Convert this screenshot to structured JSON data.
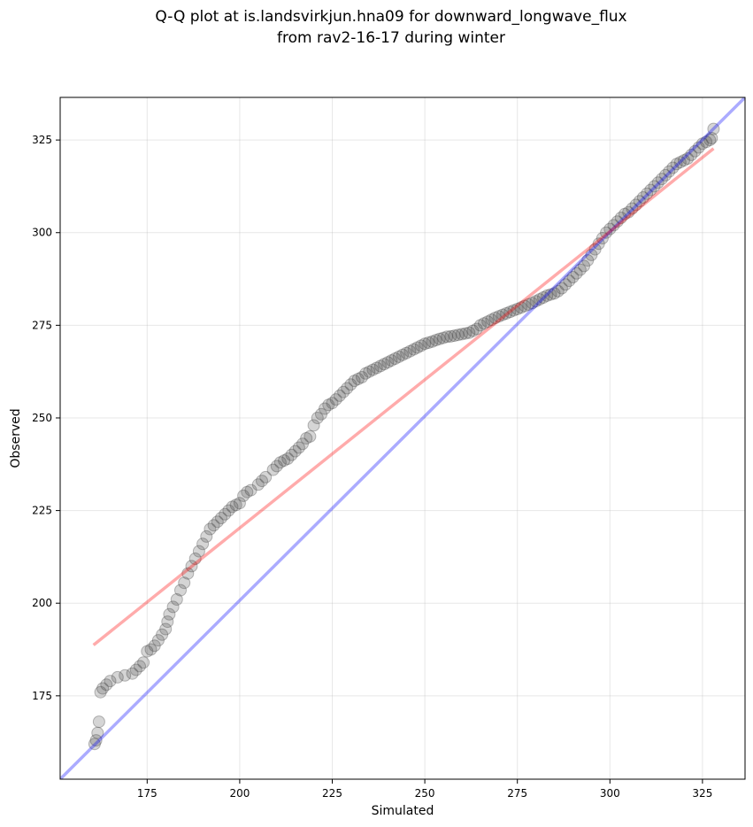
{
  "chart_data": {
    "type": "scatter",
    "title": "Q-Q plot at is.landsvirkjun.hna09 for downward_longwave_flux",
    "subtitle": "from rav2-16-17 during winter",
    "xlabel": "Simulated",
    "ylabel": "Observed",
    "xlim": [
      151.5,
      336.5
    ],
    "ylim": [
      152.5,
      336.5
    ],
    "xticks": [
      175,
      200,
      225,
      250,
      275,
      300,
      325
    ],
    "yticks": [
      175,
      200,
      225,
      250,
      275,
      300,
      325
    ],
    "grid": true,
    "series": [
      {
        "name": "quantiles",
        "color": "#404040",
        "points": [
          [
            160.8,
            162.0
          ],
          [
            161.2,
            163.0
          ],
          [
            161.6,
            165.0
          ],
          [
            162.0,
            168.0
          ],
          [
            162.4,
            176.0
          ],
          [
            163.0,
            177.0
          ],
          [
            164.0,
            178.0
          ],
          [
            165.0,
            179.0
          ],
          [
            167.0,
            180.0
          ],
          [
            169.0,
            180.5
          ],
          [
            171.0,
            181.0
          ],
          [
            172.0,
            182.0
          ],
          [
            173.0,
            183.0
          ],
          [
            174.0,
            184.0
          ],
          [
            175.0,
            187.0
          ],
          [
            176.0,
            187.5
          ],
          [
            177.0,
            188.5
          ],
          [
            178.0,
            190.0
          ],
          [
            179.0,
            191.5
          ],
          [
            180.0,
            193.0
          ],
          [
            180.5,
            195.0
          ],
          [
            181.0,
            197.0
          ],
          [
            182.0,
            199.0
          ],
          [
            183.0,
            201.0
          ],
          [
            184.0,
            203.5
          ],
          [
            185.0,
            205.5
          ],
          [
            186.0,
            208.0
          ],
          [
            187.0,
            210.0
          ],
          [
            188.0,
            212.0
          ],
          [
            189.0,
            214.0
          ],
          [
            190.0,
            216.0
          ],
          [
            191.0,
            218.0
          ],
          [
            192.0,
            220.0
          ],
          [
            193.0,
            221.0
          ],
          [
            194.0,
            222.0
          ],
          [
            195.0,
            223.0
          ],
          [
            196.0,
            224.0
          ],
          [
            197.0,
            225.0
          ],
          [
            198.0,
            226.0
          ],
          [
            199.0,
            226.5
          ],
          [
            200.0,
            227.0
          ],
          [
            201.0,
            229.0
          ],
          [
            202.0,
            230.0
          ],
          [
            203.0,
            230.5
          ],
          [
            205.0,
            232.0
          ],
          [
            206.0,
            233.0
          ],
          [
            207.0,
            234.0
          ],
          [
            209.0,
            236.0
          ],
          [
            210.0,
            237.0
          ],
          [
            211.0,
            238.0
          ],
          [
            212.0,
            238.5
          ],
          [
            213.0,
            239.0
          ],
          [
            214.0,
            240.0
          ],
          [
            215.0,
            241.0
          ],
          [
            216.0,
            242.0
          ],
          [
            217.0,
            243.0
          ],
          [
            218.0,
            244.5
          ],
          [
            219.0,
            245.0
          ],
          [
            220.0,
            248.0
          ],
          [
            221.0,
            250.0
          ],
          [
            222.0,
            251.0
          ],
          [
            223.0,
            252.5
          ],
          [
            224.0,
            253.5
          ],
          [
            225.0,
            254.0
          ],
          [
            226.0,
            255.0
          ],
          [
            227.0,
            256.0
          ],
          [
            228.0,
            257.0
          ],
          [
            229.0,
            258.0
          ],
          [
            230.0,
            259.0
          ],
          [
            231.0,
            260.0
          ],
          [
            232.0,
            260.5
          ],
          [
            233.0,
            261.0
          ],
          [
            234.0,
            262.0
          ],
          [
            235.0,
            262.5
          ],
          [
            236.0,
            263.0
          ],
          [
            237.0,
            263.5
          ],
          [
            238.0,
            264.0
          ],
          [
            239.0,
            264.5
          ],
          [
            240.0,
            265.0
          ],
          [
            241.0,
            265.5
          ],
          [
            242.0,
            266.0
          ],
          [
            243.0,
            266.5
          ],
          [
            244.0,
            267.0
          ],
          [
            245.0,
            267.5
          ],
          [
            246.0,
            268.0
          ],
          [
            247.0,
            268.5
          ],
          [
            248.0,
            269.0
          ],
          [
            249.0,
            269.5
          ],
          [
            250.0,
            270.0
          ],
          [
            251.0,
            270.3
          ],
          [
            252.0,
            270.6
          ],
          [
            253.0,
            271.0
          ],
          [
            254.0,
            271.3
          ],
          [
            255.0,
            271.6
          ],
          [
            256.0,
            271.9
          ],
          [
            257.0,
            272.0
          ],
          [
            258.0,
            272.2
          ],
          [
            259.0,
            272.4
          ],
          [
            260.0,
            272.6
          ],
          [
            261.0,
            272.8
          ],
          [
            262.0,
            273.0
          ],
          [
            263.0,
            273.5
          ],
          [
            264.0,
            274.0
          ],
          [
            265.0,
            275.0
          ],
          [
            266.0,
            275.5
          ],
          [
            267.0,
            276.0
          ],
          [
            268.0,
            276.5
          ],
          [
            269.0,
            277.0
          ],
          [
            270.0,
            277.4
          ],
          [
            271.0,
            277.8
          ],
          [
            272.0,
            278.2
          ],
          [
            273.0,
            278.6
          ],
          [
            274.0,
            279.0
          ],
          [
            275.0,
            279.4
          ],
          [
            276.0,
            279.8
          ],
          [
            277.0,
            280.2
          ],
          [
            278.0,
            280.6
          ],
          [
            279.0,
            281.0
          ],
          [
            280.0,
            281.5
          ],
          [
            281.0,
            282.0
          ],
          [
            282.0,
            282.5
          ],
          [
            283.0,
            283.0
          ],
          [
            284.0,
            283.3
          ],
          [
            285.0,
            283.6
          ],
          [
            286.0,
            284.2
          ],
          [
            287.0,
            285.0
          ],
          [
            288.0,
            286.0
          ],
          [
            289.0,
            287.0
          ],
          [
            290.0,
            288.0
          ],
          [
            291.0,
            289.0
          ],
          [
            292.0,
            290.0
          ],
          [
            293.0,
            291.0
          ],
          [
            294.0,
            292.5
          ],
          [
            295.0,
            294.0
          ],
          [
            296.0,
            295.5
          ],
          [
            297.0,
            297.0
          ],
          [
            298.0,
            298.5
          ],
          [
            299.0,
            300.0
          ],
          [
            300.0,
            301.0
          ],
          [
            301.0,
            302.0
          ],
          [
            302.0,
            303.0
          ],
          [
            303.0,
            304.0
          ],
          [
            304.0,
            305.0
          ],
          [
            305.0,
            305.5
          ],
          [
            306.0,
            306.5
          ],
          [
            307.0,
            307.5
          ],
          [
            308.0,
            308.5
          ],
          [
            309.0,
            309.5
          ],
          [
            310.0,
            310.5
          ],
          [
            311.0,
            311.5
          ],
          [
            312.0,
            312.5
          ],
          [
            313.0,
            313.5
          ],
          [
            314.0,
            314.5
          ],
          [
            315.0,
            315.5
          ],
          [
            316.0,
            316.5
          ],
          [
            317.0,
            317.5
          ],
          [
            318.0,
            318.5
          ],
          [
            319.0,
            319.0
          ],
          [
            320.0,
            319.5
          ],
          [
            321.0,
            320.0
          ],
          [
            322.0,
            321.0
          ],
          [
            323.0,
            322.0
          ],
          [
            324.0,
            323.0
          ],
          [
            325.0,
            324.0
          ],
          [
            326.0,
            324.5
          ],
          [
            327.0,
            325.0
          ],
          [
            327.5,
            325.5
          ],
          [
            328.0,
            328.0
          ]
        ]
      }
    ],
    "lines": [
      {
        "name": "1:1 line",
        "color": "#0000ff",
        "opacity": 0.33,
        "points": [
          [
            151.5,
            152.5
          ],
          [
            336.5,
            336.5
          ]
        ]
      },
      {
        "name": "linear fit",
        "color": "#ff0000",
        "opacity": 0.33,
        "points": [
          [
            160.5,
            188.7
          ],
          [
            328.0,
            322.7
          ]
        ]
      }
    ]
  }
}
